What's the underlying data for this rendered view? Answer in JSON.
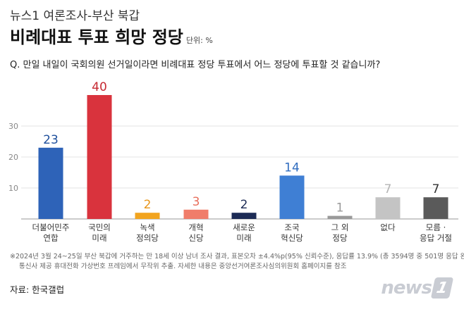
{
  "header": {
    "sup_title": "뉴스1 여론조사-부산 북갑",
    "title": "비례대표 투표 희망 정당",
    "unit": "단위: %"
  },
  "question": "Q. 만일 내일이 국회의원 선거일이라면 비례대표 정당 투표에서 어느 정당에 투표할 것 같습니까?",
  "chart_data": {
    "type": "bar",
    "categories": [
      [
        "더불어민주",
        "연합"
      ],
      [
        "국민의",
        "미래"
      ],
      [
        "녹색",
        "정의당"
      ],
      [
        "개혁",
        "신당"
      ],
      [
        "새로운",
        "미래"
      ],
      [
        "조국",
        "혁신당"
      ],
      [
        "그 외",
        "정당"
      ],
      [
        "없다"
      ],
      [
        "모름 ·",
        "응답 거절"
      ]
    ],
    "values": [
      23,
      40,
      2,
      3,
      2,
      14,
      1,
      7,
      7
    ],
    "colors": [
      "#2e63b8",
      "#d9333d",
      "#f2a41f",
      "#f07d6a",
      "#1c2b55",
      "#3f7fd4",
      "#9a9a9a",
      "#c4c4c4",
      "#5a5a5a"
    ],
    "label_colors": [
      "#1e4f9c",
      "#c62a33",
      "#e8961a",
      "#e86f5c",
      "#1c2b55",
      "#2f6cbf",
      "#9a9a9a",
      "#b5b5b5",
      "#333333"
    ],
    "y_ticks": [
      10,
      20,
      30
    ],
    "ylim": [
      0,
      40
    ],
    "grid": true
  },
  "footnote": [
    "※2024년 3월 24~25일 부산 북갑에 거주하는 만 18세 이상 남녀 조사 결과, 표본오차 ±4.4%p(95% 신뢰수준), 응답률 13.9% (총 3594명 중 501명 응답 완료),",
    "통신사 제공 휴대전화 가상번호 프레임에서 무작위 추출. 자세한 내용은 중앙선거여론조사심의위원회 홈페이지를 참조"
  ],
  "source": "자료: 한국갤럽",
  "logo": {
    "text": "news",
    "badge": "1"
  }
}
